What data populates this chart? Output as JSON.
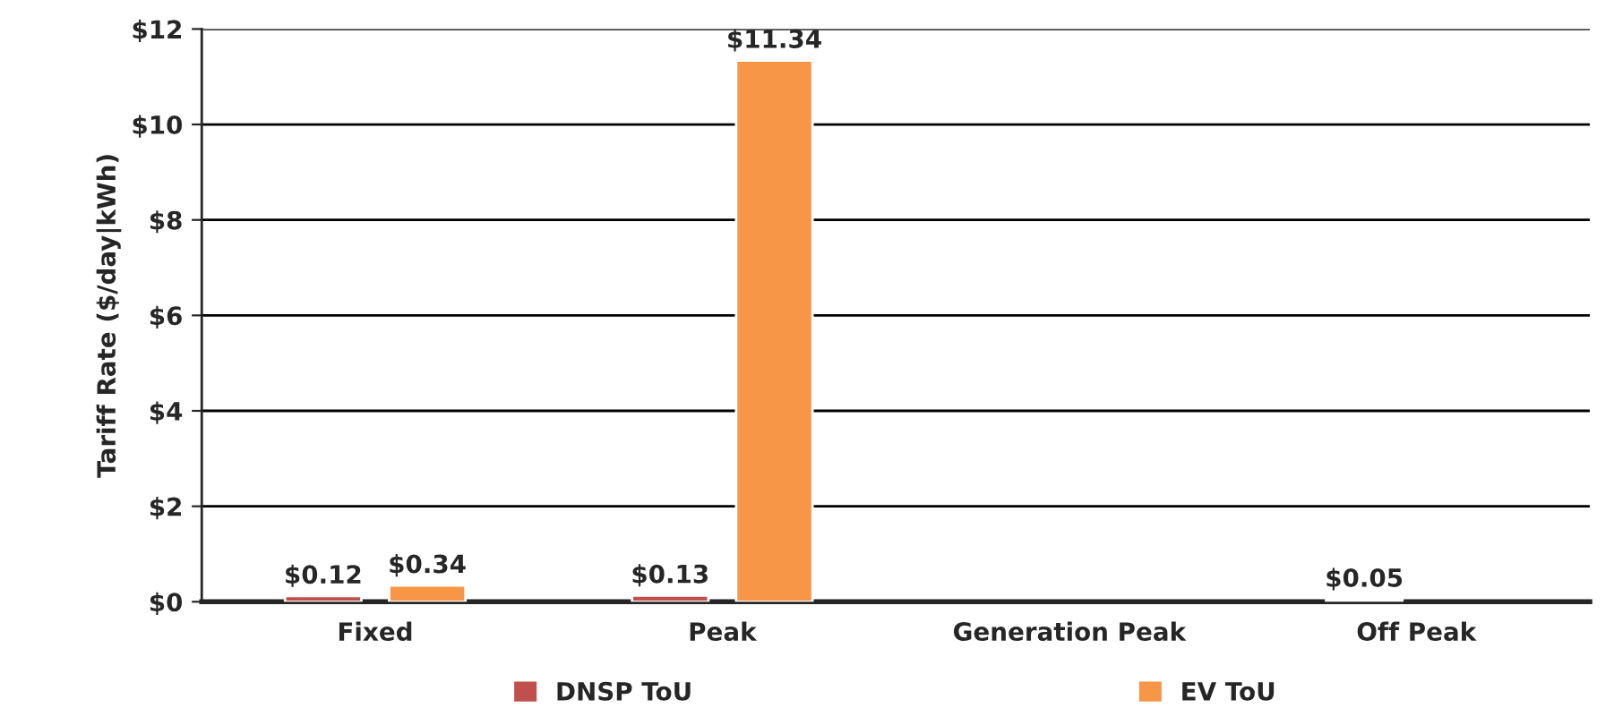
{
  "chart_data": {
    "type": "bar",
    "ylabel": "Tariff Rate ($/day|kWh)",
    "categories": [
      "Fixed",
      "Peak",
      "Generation Peak",
      "Off Peak"
    ],
    "series": [
      {
        "name": "DNSP ToU",
        "color": "#c0504d",
        "values": [
          0.12,
          0.13,
          null,
          0.05
        ],
        "value_labels": [
          "$0.12",
          "$0.13",
          null,
          "$0.05"
        ]
      },
      {
        "name": "EV ToU",
        "color": "#f79646",
        "values": [
          0.34,
          11.34,
          null,
          null
        ],
        "value_labels": [
          "$0.34",
          "$11.34",
          null,
          null
        ]
      }
    ],
    "ylim": [
      0,
      12
    ],
    "yticks": [
      {
        "value": 0,
        "label": "$0"
      },
      {
        "value": 2,
        "label": "$2"
      },
      {
        "value": 4,
        "label": "$4"
      },
      {
        "value": 6,
        "label": "$6"
      },
      {
        "value": 8,
        "label": "$8"
      },
      {
        "value": 10,
        "label": "$10"
      },
      {
        "value": 12,
        "label": "$12"
      }
    ],
    "grid": "y",
    "legend": "bottom"
  }
}
